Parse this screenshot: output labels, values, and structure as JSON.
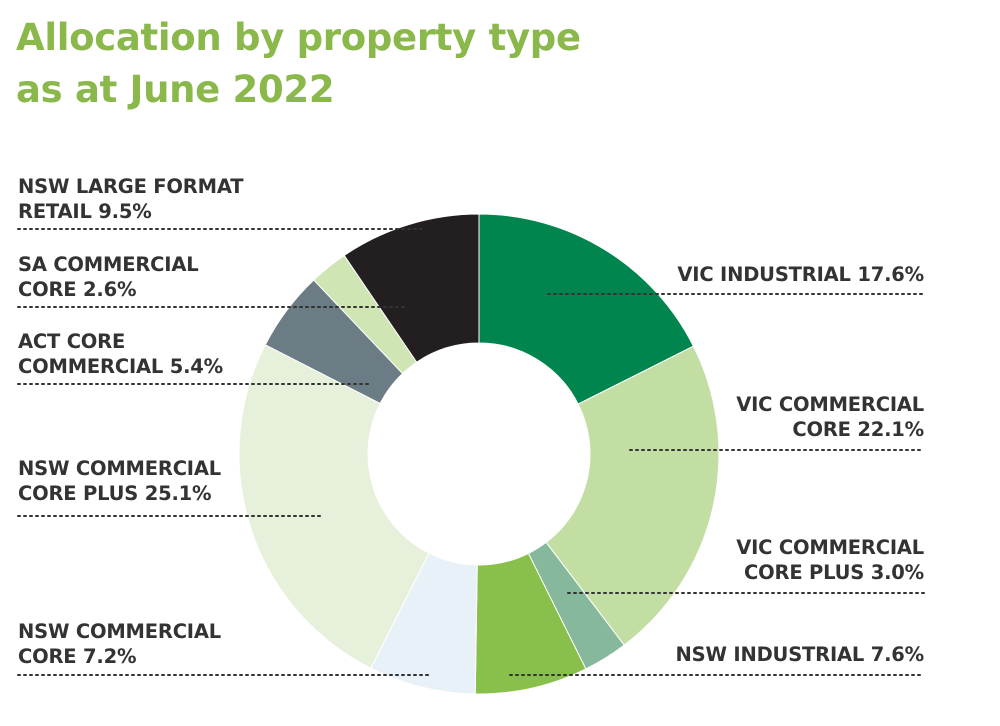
{
  "title": {
    "line1": "Allocation by property type",
    "line2": "as at June 2022"
  },
  "chart_data": {
    "type": "pie",
    "title": "Allocation by property type as at June 2022",
    "donut": true,
    "unit": "%",
    "slices": [
      {
        "label": "VIC INDUSTRIAL",
        "value": 17.6,
        "color": "#00854f",
        "text_line1": "VIC INDUSTRIAL 17.6%",
        "text_line2": ""
      },
      {
        "label": "VIC COMMERCIAL CORE",
        "value": 22.1,
        "color": "#c3dea3",
        "text_line1": "VIC COMMERCIAL",
        "text_line2": "CORE 22.1%"
      },
      {
        "label": "VIC COMMERCIAL CORE PLUS",
        "value": 3.0,
        "color": "#86b89b",
        "text_line1": "VIC COMMERCIAL",
        "text_line2": "CORE PLUS 3.0%"
      },
      {
        "label": "NSW INDUSTRIAL",
        "value": 7.6,
        "color": "#88c04b",
        "text_line1": "NSW INDUSTRIAL 7.6%",
        "text_line2": ""
      },
      {
        "label": "NSW COMMERCIAL CORE",
        "value": 7.2,
        "color": "#e8f1f7",
        "text_line1": "NSW COMMERCIAL",
        "text_line2": "CORE 7.2%"
      },
      {
        "label": "NSW COMMERCIAL CORE PLUS",
        "value": 25.1,
        "color": "#e6f0da",
        "text_line1": "NSW COMMERCIAL",
        "text_line2": "CORE PLUS 25.1%"
      },
      {
        "label": "ACT CORE COMMERCIAL",
        "value": 5.4,
        "color": "#6b7c84",
        "text_line1": "ACT CORE",
        "text_line2": "COMMERCIAL 5.4%"
      },
      {
        "label": "SA COMMERCIAL CORE",
        "value": 2.6,
        "color": "#cfe5b4",
        "text_line1": "SA COMMERCIAL",
        "text_line2": "CORE 2.6%"
      },
      {
        "label": "NSW LARGE FORMAT RETAIL",
        "value": 9.5,
        "color": "#231f20",
        "text_line1": "NSW LARGE FORMAT",
        "text_line2": "RETAIL 9.5%"
      }
    ]
  },
  "colors": {
    "title": "#8ab84a",
    "label_text": "#333333",
    "leader_dots": "#333333"
  }
}
